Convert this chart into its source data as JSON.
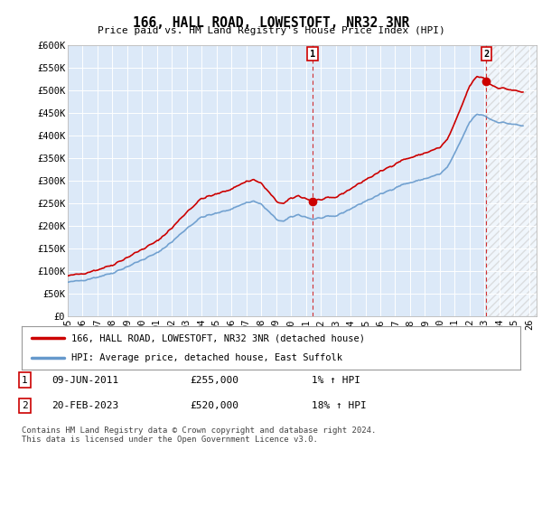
{
  "title": "166, HALL ROAD, LOWESTOFT, NR32 3NR",
  "subtitle": "Price paid vs. HM Land Registry's House Price Index (HPI)",
  "ylim": [
    0,
    600000
  ],
  "yticks": [
    0,
    50000,
    100000,
    150000,
    200000,
    250000,
    300000,
    350000,
    400000,
    450000,
    500000,
    550000,
    600000
  ],
  "ytick_labels": [
    "£0",
    "£50K",
    "£100K",
    "£150K",
    "£200K",
    "£250K",
    "£300K",
    "£350K",
    "£400K",
    "£450K",
    "£500K",
    "£550K",
    "£600K"
  ],
  "xlim_start": 1995.0,
  "xlim_end": 2026.5,
  "background_color": "#dce9f8",
  "plot_bg_color": "#dce9f8",
  "grid_color": "#c8d8e8",
  "hpi_color": "#6699cc",
  "price_color": "#cc0000",
  "sale1_x": 2011.44,
  "sale1_y": 255000,
  "sale2_x": 2023.13,
  "sale2_y": 520000,
  "legend_label1": "166, HALL ROAD, LOWESTOFT, NR32 3NR (detached house)",
  "legend_label2": "HPI: Average price, detached house, East Suffolk",
  "footer": "Contains HM Land Registry data © Crown copyright and database right 2024.\nThis data is licensed under the Open Government Licence v3.0.",
  "hpi_base_x": 1995.0,
  "hpi_base_value": 75000,
  "sale1_hpi_value": 215000,
  "sale2_hpi_value": 442000
}
